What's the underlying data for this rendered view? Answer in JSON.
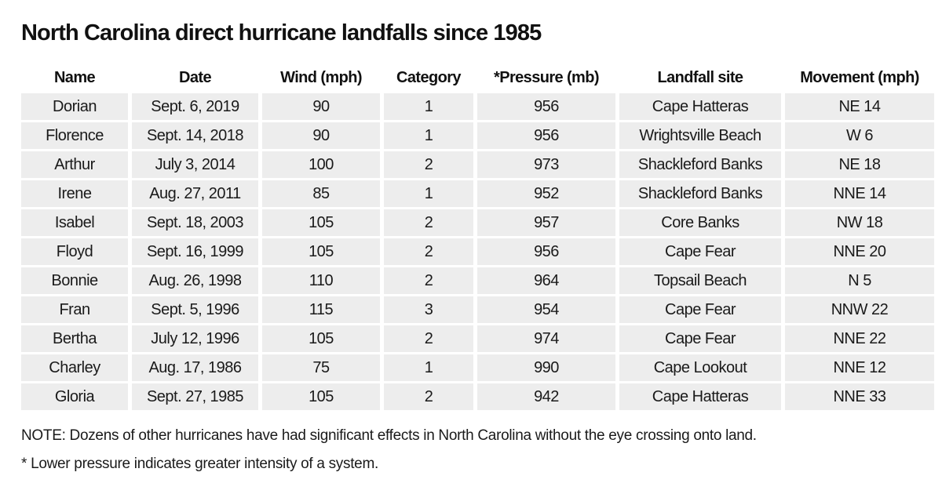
{
  "title": "North Carolina direct hurricane landfalls since 1985",
  "table": {
    "headers": [
      "Name",
      "Date",
      "Wind (mph)",
      "Category",
      "*Pressure (mb)",
      "Landfall site",
      "Movement (mph)"
    ],
    "rows": [
      [
        "Dorian",
        "Sept. 6, 2019",
        "90",
        "1",
        "956",
        "Cape Hatteras",
        "NE 14"
      ],
      [
        "Florence",
        "Sept. 14, 2018",
        "90",
        "1",
        "956",
        "Wrightsville Beach",
        "W 6"
      ],
      [
        "Arthur",
        "July 3, 2014",
        "100",
        "2",
        "973",
        "Shackleford Banks",
        "NE 18"
      ],
      [
        "Irene",
        "Aug. 27, 2011",
        "85",
        "1",
        "952",
        "Shackleford Banks",
        "NNE 14"
      ],
      [
        "Isabel",
        "Sept. 18, 2003",
        "105",
        "2",
        "957",
        "Core Banks",
        "NW 18"
      ],
      [
        "Floyd",
        "Sept. 16, 1999",
        "105",
        "2",
        "956",
        "Cape Fear",
        "NNE 20"
      ],
      [
        "Bonnie",
        "Aug. 26, 1998",
        "110",
        "2",
        "964",
        "Topsail Beach",
        "N 5"
      ],
      [
        "Fran",
        "Sept. 5, 1996",
        "115",
        "3",
        "954",
        "Cape Fear",
        "NNW 22"
      ],
      [
        "Bertha",
        "July 12, 1996",
        "105",
        "2",
        "974",
        "Cape Fear",
        "NNE 22"
      ],
      [
        "Charley",
        "Aug. 17, 1986",
        "75",
        "1",
        "990",
        "Cape Lookout",
        "NNE 12"
      ],
      [
        "Gloria",
        "Sept. 27, 1985",
        "105",
        "2",
        "942",
        "Cape Hatteras",
        "NNE 33"
      ]
    ]
  },
  "notes": {
    "note": "NOTE: Dozens of other hurricanes have had significant effects in North Carolina without the eye crossing onto land.",
    "footnote": "* Lower pressure indicates greater intensity of a system."
  },
  "colors": {
    "cell_background": "#ededed",
    "text": "#1a1a1a"
  }
}
